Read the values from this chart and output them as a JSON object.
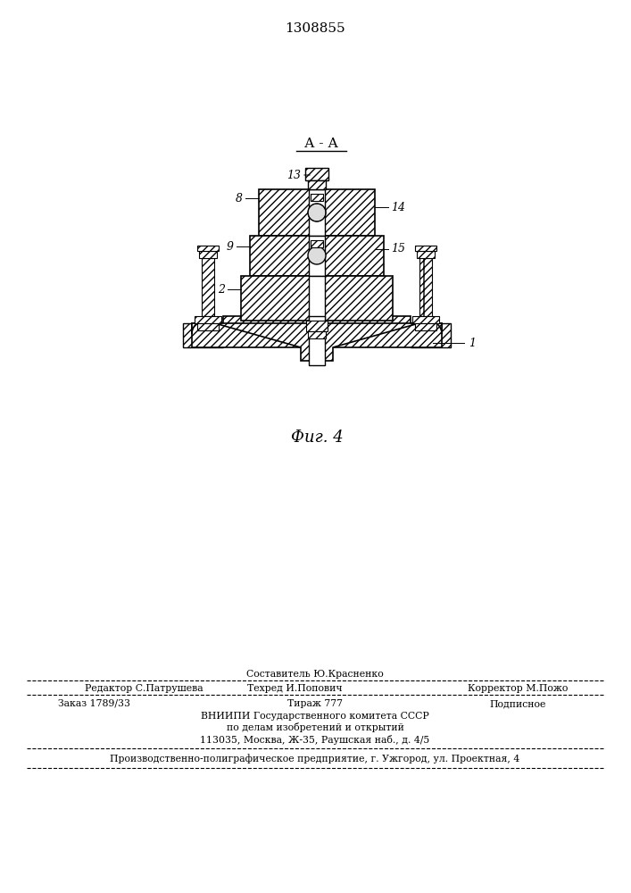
{
  "patent_number": "1308855",
  "fig_label": "Фиг. 4",
  "section_label": "А - А",
  "bg_color": "#ffffff",
  "footer_sestavitel": "Составитель Ю.Красненко",
  "footer_redaktor": "Редактор С.Патрушева",
  "footer_tekhred": "Техред И.Попович",
  "footer_korrektor": "Корректор М.Пожо",
  "footer_zakaz": "Заказ 1789/33",
  "footer_tirazh": "Тираж 777",
  "footer_podpisnoe": "Подписное",
  "footer_org1": "ВНИИПИ Государственного комитета СССР",
  "footer_org2": "по делам изобретений и открытий",
  "footer_org3": "113035, Москва, Ж-35, Раушская наб., д. 4/5",
  "footer_bottom": "Производственно-полиграфическое предприятие, г. Ужгород, ул. Проектная, 4"
}
